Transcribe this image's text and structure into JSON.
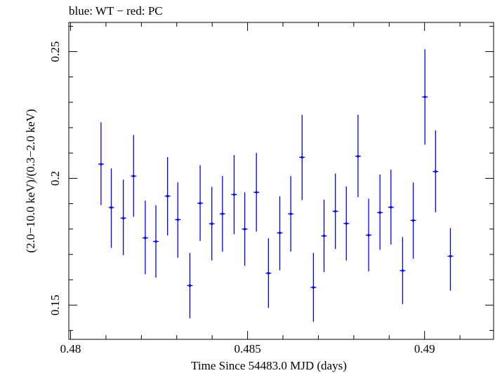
{
  "chart_data": {
    "type": "scatter",
    "title": "blue: WT − red: PC",
    "xlabel": "Time Since 54483.0 MJD (days)",
    "ylabel": "(2.0−10.0 keV)/(0.3−2.0 keV)",
    "xlim": [
      0.47995,
      0.49195
    ],
    "ylim": [
      0.1365,
      0.2615
    ],
    "x_ticks": [
      0.48,
      0.485,
      0.49
    ],
    "x_tick_labels": [
      "0.48",
      "0.485",
      "0.49"
    ],
    "y_ticks": [
      0.15,
      0.2,
      0.25
    ],
    "y_tick_labels": [
      "0.15",
      "0.2",
      "0.25"
    ],
    "grid": false,
    "series": [
      {
        "name": "WT",
        "color": "#0000ff",
        "points": [
          {
            "x": 0.48086,
            "xerr": 8e-05,
            "y": 0.2056,
            "ylo": 0.1894,
            "yhi": 0.2221
          },
          {
            "x": 0.48115,
            "xerr": 8e-05,
            "y": 0.1885,
            "ylo": 0.1726,
            "yhi": 0.2039
          },
          {
            "x": 0.48149,
            "xerr": 8e-05,
            "y": 0.1843,
            "ylo": 0.1697,
            "yhi": 0.1995
          },
          {
            "x": 0.48178,
            "xerr": 8e-05,
            "y": 0.2009,
            "ylo": 0.1848,
            "yhi": 0.2171
          },
          {
            "x": 0.48211,
            "xerr": 8e-05,
            "y": 0.1765,
            "ylo": 0.1622,
            "yhi": 0.1912
          },
          {
            "x": 0.48241,
            "xerr": 8e-05,
            "y": 0.1751,
            "ylo": 0.1608,
            "yhi": 0.1894
          },
          {
            "x": 0.48274,
            "xerr": 8e-05,
            "y": 0.193,
            "ylo": 0.1775,
            "yhi": 0.2084
          },
          {
            "x": 0.48303,
            "xerr": 8e-05,
            "y": 0.1837,
            "ylo": 0.1687,
            "yhi": 0.1984
          },
          {
            "x": 0.48337,
            "xerr": 8e-05,
            "y": 0.1577,
            "ylo": 0.1448,
            "yhi": 0.1706
          },
          {
            "x": 0.48366,
            "xerr": 8e-05,
            "y": 0.1902,
            "ylo": 0.1753,
            "yhi": 0.2052
          },
          {
            "x": 0.48399,
            "xerr": 8e-05,
            "y": 0.1821,
            "ylo": 0.1676,
            "yhi": 0.1966
          },
          {
            "x": 0.48429,
            "xerr": 8e-05,
            "y": 0.186,
            "ylo": 0.1711,
            "yhi": 0.2009
          },
          {
            "x": 0.48462,
            "xerr": 8e-05,
            "y": 0.1936,
            "ylo": 0.178,
            "yhi": 0.2092
          },
          {
            "x": 0.48492,
            "xerr": 8e-05,
            "y": 0.18,
            "ylo": 0.1655,
            "yhi": 0.1945
          },
          {
            "x": 0.48525,
            "xerr": 8e-05,
            "y": 0.1945,
            "ylo": 0.179,
            "yhi": 0.21
          },
          {
            "x": 0.48559,
            "xerr": 8e-05,
            "y": 0.1626,
            "ylo": 0.1489,
            "yhi": 0.1764
          },
          {
            "x": 0.48591,
            "xerr": 8e-05,
            "y": 0.1785,
            "ylo": 0.1637,
            "yhi": 0.1929
          },
          {
            "x": 0.48622,
            "xerr": 8e-05,
            "y": 0.186,
            "ylo": 0.1711,
            "yhi": 0.2009
          },
          {
            "x": 0.48654,
            "xerr": 8e-05,
            "y": 0.2083,
            "ylo": 0.1914,
            "yhi": 0.2251
          },
          {
            "x": 0.48686,
            "xerr": 8e-05,
            "y": 0.157,
            "ylo": 0.1434,
            "yhi": 0.1706
          },
          {
            "x": 0.48716,
            "xerr": 8e-05,
            "y": 0.1773,
            "ylo": 0.163,
            "yhi": 0.1916
          },
          {
            "x": 0.48748,
            "xerr": 8e-05,
            "y": 0.187,
            "ylo": 0.1721,
            "yhi": 0.2019
          },
          {
            "x": 0.48779,
            "xerr": 8e-05,
            "y": 0.1822,
            "ylo": 0.1676,
            "yhi": 0.1968
          },
          {
            "x": 0.48812,
            "xerr": 8e-05,
            "y": 0.2087,
            "ylo": 0.1926,
            "yhi": 0.2251
          },
          {
            "x": 0.48842,
            "xerr": 8e-05,
            "y": 0.1776,
            "ylo": 0.1633,
            "yhi": 0.192
          },
          {
            "x": 0.48874,
            "xerr": 8e-05,
            "y": 0.1865,
            "ylo": 0.1718,
            "yhi": 0.2015
          },
          {
            "x": 0.48905,
            "xerr": 8e-05,
            "y": 0.1886,
            "ylo": 0.1739,
            "yhi": 0.2034
          },
          {
            "x": 0.48938,
            "xerr": 8e-05,
            "y": 0.1636,
            "ylo": 0.1504,
            "yhi": 0.1768
          },
          {
            "x": 0.48968,
            "xerr": 8e-05,
            "y": 0.1834,
            "ylo": 0.1683,
            "yhi": 0.1984
          },
          {
            "x": 0.49001,
            "xerr": 8e-05,
            "y": 0.2321,
            "ylo": 0.2133,
            "yhi": 0.2509
          },
          {
            "x": 0.49031,
            "xerr": 8e-05,
            "y": 0.2027,
            "ylo": 0.1866,
            "yhi": 0.2189
          },
          {
            "x": 0.49073,
            "xerr": 8e-05,
            "y": 0.1693,
            "ylo": 0.1557,
            "yhi": 0.1804
          }
        ]
      }
    ]
  }
}
